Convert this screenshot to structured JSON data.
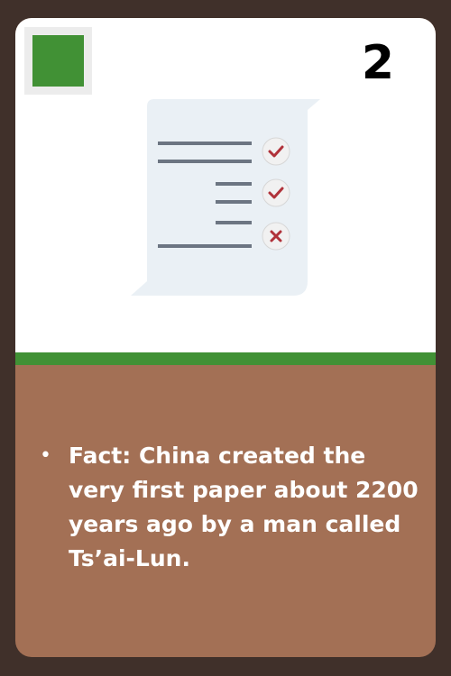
{
  "card": {
    "number": "2",
    "badge_color": "#419135",
    "band_color": "#419135",
    "body_color": "#a37055",
    "frame_color": "#40302a",
    "icon": "checklist-document-icon"
  },
  "fact": {
    "text": "Fact: China created the very first paper about 2200 years ago by a man called Ts’ai-Lun."
  }
}
